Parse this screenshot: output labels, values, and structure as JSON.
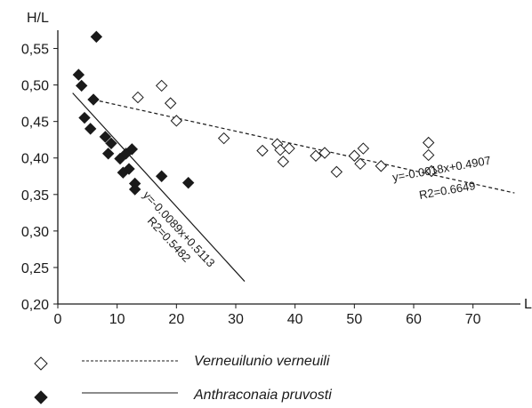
{
  "chart_data": {
    "type": "scatter",
    "xlabel": "L",
    "ylabel": "H/L",
    "xlim": [
      0,
      78
    ],
    "ylim": [
      0.2,
      0.575
    ],
    "x_ticks": [
      0,
      10,
      20,
      30,
      40,
      50,
      60,
      70
    ],
    "y_ticks": [
      0.2,
      0.25,
      0.3,
      0.35,
      0.4,
      0.45,
      0.5,
      0.55
    ],
    "x_tick_labels": [
      "0",
      "10",
      "20",
      "30",
      "40",
      "50",
      "60",
      "70"
    ],
    "y_tick_labels": [
      "0,20",
      "0,25",
      "0,30",
      "0,35",
      "0,40",
      "0,45",
      "0,50",
      "0,55"
    ],
    "grid": false,
    "legend_position": "bottom",
    "series": [
      {
        "name": "Verneuilunio verneuili",
        "marker": "open-diamond",
        "color": "#1a1a1a",
        "points": [
          [
            13.5,
            0.483
          ],
          [
            17.5,
            0.499
          ],
          [
            19.0,
            0.475
          ],
          [
            20.0,
            0.451
          ],
          [
            28.0,
            0.427
          ],
          [
            34.5,
            0.41
          ],
          [
            37.0,
            0.419
          ],
          [
            37.5,
            0.411
          ],
          [
            38.0,
            0.395
          ],
          [
            39.0,
            0.413
          ],
          [
            43.5,
            0.403
          ],
          [
            45.0,
            0.407
          ],
          [
            47.0,
            0.381
          ],
          [
            50.0,
            0.403
          ],
          [
            51.0,
            0.392
          ],
          [
            51.5,
            0.413
          ],
          [
            54.5,
            0.389
          ],
          [
            62.5,
            0.421
          ],
          [
            62.5,
            0.404
          ],
          [
            63.0,
            0.382
          ]
        ],
        "trendline": {
          "style": "dashed",
          "equation": "y=-0.0018x+0.4907",
          "r2": "R2=0.6649",
          "slope": -0.0018,
          "intercept": 0.4907,
          "x_range": [
            6,
            77
          ]
        }
      },
      {
        "name": "Anthraconaia pruvosti",
        "marker": "filled-diamond",
        "color": "#1a1a1a",
        "points": [
          [
            3.5,
            0.514
          ],
          [
            4.0,
            0.499
          ],
          [
            4.5,
            0.455
          ],
          [
            5.5,
            0.44
          ],
          [
            6.0,
            0.48
          ],
          [
            6.5,
            0.566
          ],
          [
            8.0,
            0.429
          ],
          [
            8.5,
            0.406
          ],
          [
            9.0,
            0.42
          ],
          [
            10.5,
            0.399
          ],
          [
            11.0,
            0.38
          ],
          [
            11.5,
            0.406
          ],
          [
            12.0,
            0.385
          ],
          [
            12.5,
            0.412
          ],
          [
            13.0,
            0.365
          ],
          [
            13.0,
            0.357
          ],
          [
            17.5,
            0.375
          ],
          [
            22.0,
            0.366
          ]
        ],
        "trendline": {
          "style": "solid",
          "equation": "y=-0.0089x+0.5113",
          "r2": "R2=0.5482",
          "slope": -0.0089,
          "intercept": 0.5113,
          "x_range": [
            2.5,
            31.5
          ]
        }
      }
    ]
  }
}
